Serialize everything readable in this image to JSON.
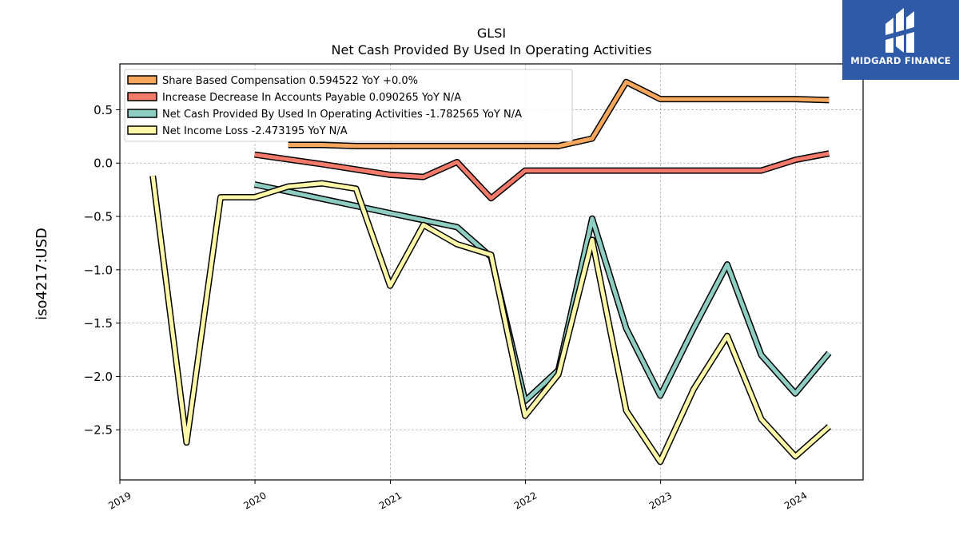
{
  "brand": {
    "name": "MIDGARD FINANCE",
    "color": "#2e5aa8",
    "icon": "midgard-logo-icon"
  },
  "chart_data": {
    "type": "line",
    "title": "GLSI",
    "subtitle": "Net Cash Provided By Used In Operating Activities",
    "xlabel": "",
    "ylabel": "iso4217:USD",
    "xlim": [
      "2019-01-01",
      "2024-07-01"
    ],
    "ylim": [
      -2.97,
      0.93
    ],
    "x_ticks": [
      "2019",
      "2020",
      "2021",
      "2022",
      "2023",
      "2024"
    ],
    "y_ticks": [
      "0.5",
      "0.0",
      "−0.5",
      "−1.0",
      "−1.5",
      "−2.0",
      "−2.5"
    ],
    "grid": true,
    "legend_position": "top-left",
    "series": [
      {
        "name": "Share Based Compensation",
        "legend": "Share Based Compensation  0.594522 YoY +0.0%",
        "color": "#f6a75c",
        "points": [
          [
            "2020-03-31",
            0.17
          ],
          [
            "2020-06-30",
            0.17
          ],
          [
            "2020-09-30",
            0.16
          ],
          [
            "2020-12-31",
            0.16
          ],
          [
            "2021-03-31",
            0.16
          ],
          [
            "2021-06-30",
            0.16
          ],
          [
            "2021-09-30",
            0.16
          ],
          [
            "2021-12-31",
            0.16
          ],
          [
            "2022-03-31",
            0.16
          ],
          [
            "2022-06-30",
            0.23
          ],
          [
            "2022-09-30",
            0.76
          ],
          [
            "2022-12-31",
            0.6
          ],
          [
            "2023-03-31",
            0.6
          ],
          [
            "2023-06-30",
            0.6
          ],
          [
            "2023-09-30",
            0.6
          ],
          [
            "2023-12-31",
            0.6
          ],
          [
            "2024-03-31",
            0.59
          ]
        ]
      },
      {
        "name": "Increase Decrease In Accounts Payable",
        "legend": "Increase Decrease In Accounts Payable  0.090265 YoY N/A",
        "color": "#f47a6c",
        "points": [
          [
            "2019-12-31",
            0.08
          ],
          [
            "2020-06-30",
            -0.01
          ],
          [
            "2020-12-31",
            -0.11
          ],
          [
            "2021-03-31",
            -0.13
          ],
          [
            "2021-06-30",
            0.01
          ],
          [
            "2021-09-30",
            -0.33
          ],
          [
            "2021-12-31",
            -0.07
          ],
          [
            "2022-06-30",
            -0.07
          ],
          [
            "2022-12-31",
            -0.07
          ],
          [
            "2023-09-30",
            -0.07
          ],
          [
            "2023-12-31",
            0.03
          ],
          [
            "2024-03-31",
            0.09
          ]
        ]
      },
      {
        "name": "Net Cash Provided By Used In Operating Activities",
        "legend": "Net Cash Provided By Used In Operating Activities  -1.782565 YoY N/A",
        "color": "#8ecdc2",
        "points": [
          [
            "2019-12-31",
            -0.2
          ],
          [
            "2020-12-31",
            -0.47
          ],
          [
            "2021-06-30",
            -0.6
          ],
          [
            "2021-09-30",
            -0.88
          ],
          [
            "2021-12-31",
            -2.23
          ],
          [
            "2022-03-31",
            -1.94
          ],
          [
            "2022-06-30",
            -0.52
          ],
          [
            "2022-09-30",
            -1.55
          ],
          [
            "2022-12-31",
            -2.18
          ],
          [
            "2023-03-31",
            -1.55
          ],
          [
            "2023-06-30",
            -0.95
          ],
          [
            "2023-09-30",
            -1.8
          ],
          [
            "2023-12-31",
            -2.16
          ],
          [
            "2024-03-31",
            -1.78
          ]
        ]
      },
      {
        "name": "Net Income Loss",
        "legend": "Net Income Loss  -2.473195 YoY N/A",
        "color": "#fdf7a8",
        "points": [
          [
            "2019-03-31",
            -0.12
          ],
          [
            "2019-06-30",
            -2.62
          ],
          [
            "2019-09-30",
            -0.32
          ],
          [
            "2019-12-31",
            -0.32
          ],
          [
            "2020-03-31",
            -0.22
          ],
          [
            "2020-06-30",
            -0.19
          ],
          [
            "2020-09-30",
            -0.24
          ],
          [
            "2020-12-31",
            -1.15
          ],
          [
            "2021-03-31",
            -0.58
          ],
          [
            "2021-06-30",
            -0.76
          ],
          [
            "2021-09-30",
            -0.86
          ],
          [
            "2021-12-31",
            -2.37
          ],
          [
            "2022-03-31",
            -1.98
          ],
          [
            "2022-06-30",
            -0.72
          ],
          [
            "2022-09-30",
            -2.32
          ],
          [
            "2022-12-31",
            -2.8
          ],
          [
            "2023-03-31",
            -2.12
          ],
          [
            "2023-06-30",
            -1.62
          ],
          [
            "2023-09-30",
            -2.4
          ],
          [
            "2023-12-31",
            -2.75
          ],
          [
            "2024-03-31",
            -2.47
          ]
        ]
      }
    ]
  }
}
